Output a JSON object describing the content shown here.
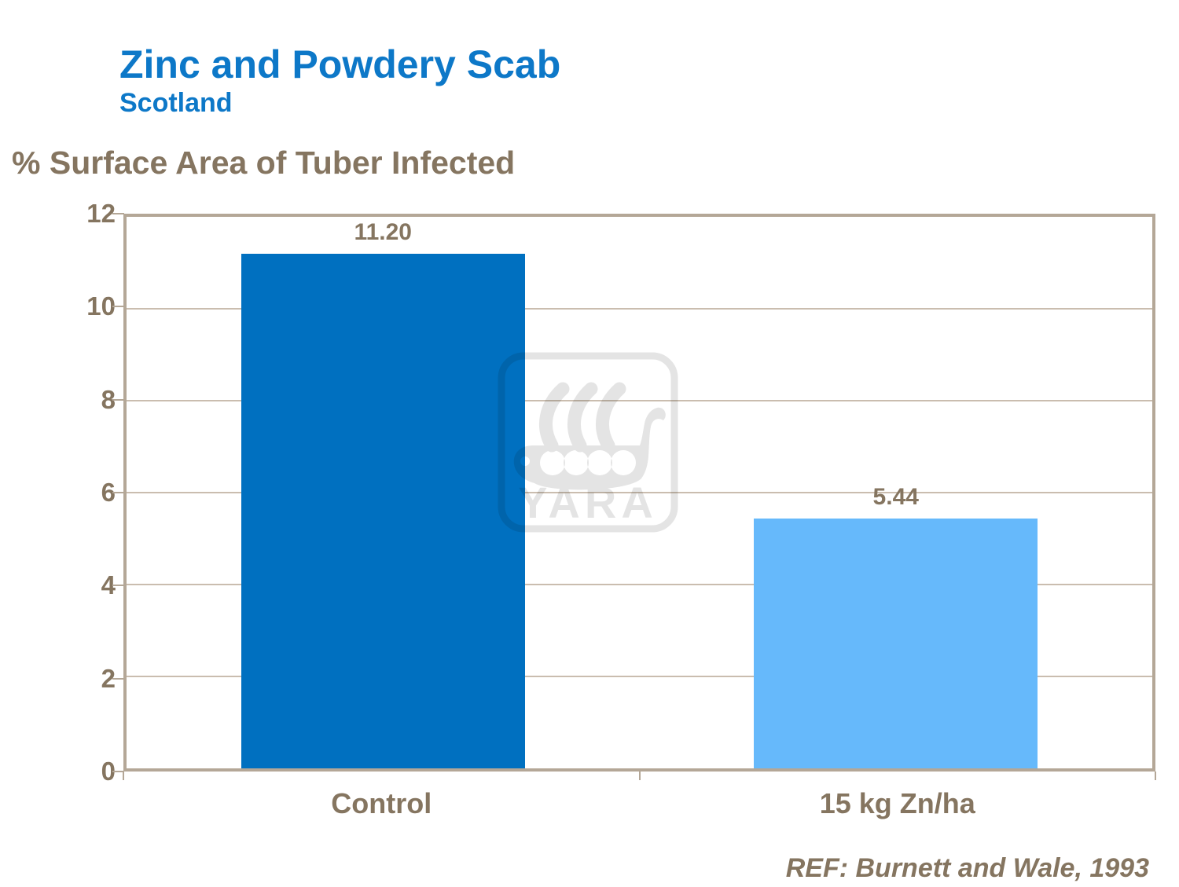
{
  "slide": {
    "title": "Zinc and Powdery Scab",
    "subtitle": "Scotland",
    "axis_title": "% Surface Area of Tuber Infected",
    "reference": "REF: Burnett and Wale, 1993",
    "watermark_text": "YARA",
    "colors": {
      "title_blue": "#0d78c8",
      "text_brown": "#857560",
      "axis_line": "#b4a797",
      "gridline": "#cabdaf"
    }
  },
  "chart_data": {
    "type": "bar",
    "categories": [
      "Control",
      "15 kg Zn/ha"
    ],
    "values": [
      11.2,
      5.44
    ],
    "value_labels": [
      "11.20",
      "5.44"
    ],
    "title": "Zinc and Powdery Scab",
    "subtitle": "Scotland",
    "ylabel": "% Surface Area of Tuber Infected",
    "xlabel": "",
    "ylim": [
      0,
      12
    ],
    "yticks": [
      0,
      2,
      4,
      6,
      8,
      10,
      12
    ],
    "grid": true,
    "legend": false,
    "bar_colors": [
      "#0070c0",
      "#66b9fb"
    ],
    "annotation": "REF: Burnett and Wale, 1993"
  }
}
